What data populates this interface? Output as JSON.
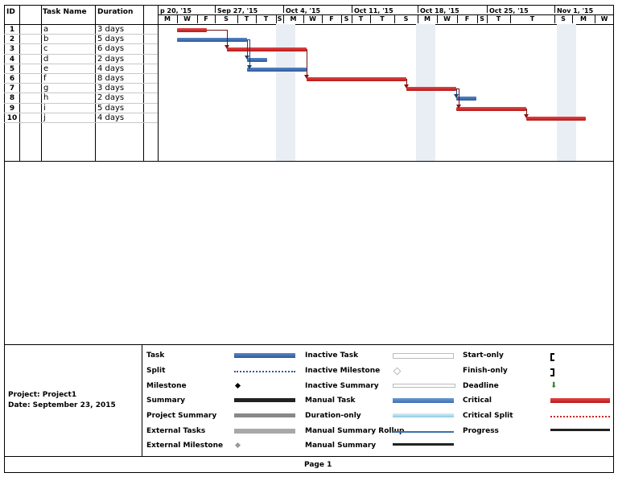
{
  "columns": {
    "id": "ID",
    "task_name": "Task Name",
    "duration": "Duration"
  },
  "timescale": {
    "weeks": [
      "p 20, '15",
      "Sep 27, '15",
      "Oct 4, '15",
      "Oct 11, '15",
      "Oct 18, '15",
      "Oct 25, '15",
      "Nov 1, '15"
    ],
    "days": [
      "M",
      "W",
      "F",
      "S",
      "T",
      "T",
      "S",
      "M",
      "W",
      "F",
      "S",
      "T",
      "T",
      "S",
      "M",
      "W",
      "F",
      "S",
      "T",
      "T",
      "S",
      "M",
      "W"
    ]
  },
  "tasks": [
    {
      "id": "1",
      "name": "a",
      "duration": "3 days",
      "type": "critical"
    },
    {
      "id": "2",
      "name": "b",
      "duration": "5 days",
      "type": "task"
    },
    {
      "id": "3",
      "name": "c",
      "duration": "6 days",
      "type": "critical"
    },
    {
      "id": "4",
      "name": "d",
      "duration": "2 days",
      "type": "task"
    },
    {
      "id": "5",
      "name": "e",
      "duration": "4 days",
      "type": "task"
    },
    {
      "id": "6",
      "name": "f",
      "duration": "8 days",
      "type": "critical"
    },
    {
      "id": "7",
      "name": "g",
      "duration": "3 days",
      "type": "critical"
    },
    {
      "id": "8",
      "name": "h",
      "duration": "2 days",
      "type": "task"
    },
    {
      "id": "9",
      "name": "i",
      "duration": "5 days",
      "type": "critical"
    },
    {
      "id": "10",
      "name": "j",
      "duration": "4 days",
      "type": "critical"
    }
  ],
  "footer": {
    "project": "Project: Project1",
    "date": "Date: September 23, 2015",
    "page": "Page 1",
    "legend_col1": [
      "Task",
      "Split",
      "Milestone",
      "Summary",
      "Project Summary",
      "External Tasks",
      "External Milestone"
    ],
    "legend_col2": [
      "Inactive Task",
      "Inactive Milestone",
      "Inactive Summary",
      "Manual Task",
      "Duration-only",
      "Manual Summary Rollup",
      "Manual Summary"
    ],
    "legend_col3": [
      "Start-only",
      "Finish-only",
      "Deadline",
      "Critical",
      "Critical Split",
      "Progress"
    ]
  },
  "colors": {
    "critical": "#c82424",
    "task": "#3a68ad",
    "deadline": "#2e8b2e"
  }
}
